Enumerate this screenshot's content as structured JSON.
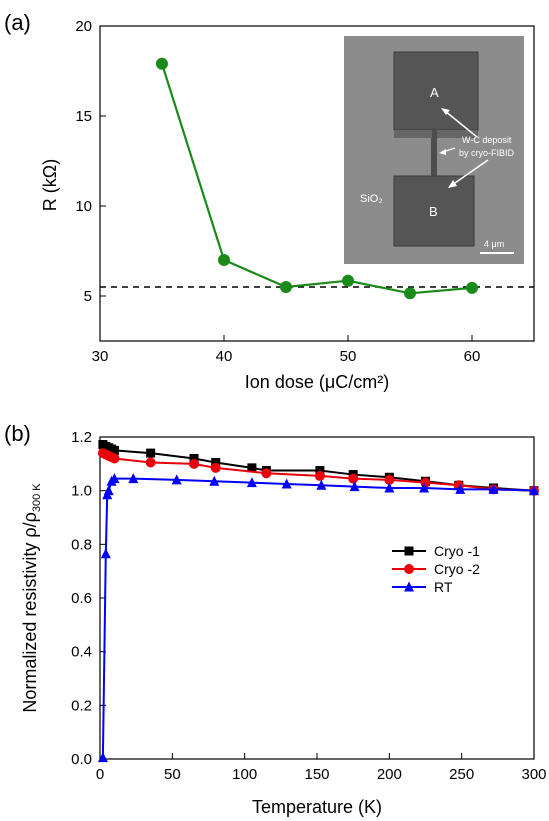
{
  "chart_data": [
    {
      "panel_label": "(a)",
      "type": "line",
      "xlabel": "Ion dose (μC/cm²)",
      "ylabel": "R (kΩ)",
      "xlim": [
        30,
        65
      ],
      "ylim": [
        2.5,
        20
      ],
      "x_ticks": [
        30,
        40,
        50,
        60
      ],
      "y_ticks": [
        5,
        10,
        15,
        20
      ],
      "series": [
        {
          "color": "#1a8a1a",
          "x": [
            35,
            40,
            45,
            50,
            55,
            60
          ],
          "y": [
            17.9,
            7.0,
            5.5,
            5.85,
            5.15,
            5.45
          ]
        }
      ],
      "reference_line": {
        "y": 5.5,
        "style": "dashed",
        "color": "#000000"
      },
      "inset": {
        "labels": [
          "A",
          "B",
          "SiO₂",
          "W-C deposit",
          "by cryo-FIBID"
        ],
        "scale_bar": "4 μm"
      },
      "grid": false
    },
    {
      "panel_label": "(b)",
      "type": "line",
      "xlabel": "Temperature (K)",
      "ylabel": "Normalized resistivity ρ/ρ300 K",
      "xlim": [
        0,
        300
      ],
      "ylim": [
        0,
        1.2
      ],
      "x_ticks": [
        0,
        50,
        100,
        150,
        200,
        250,
        300
      ],
      "y_ticks": [
        0.0,
        0.2,
        0.4,
        0.6,
        0.8,
        1.0,
        1.2
      ],
      "legend_position": "center-right",
      "grid": false,
      "series": [
        {
          "name": "Cryo -1",
          "color": "#000000",
          "marker": "square",
          "x": [
            2,
            4,
            6,
            8,
            10,
            35,
            65,
            80,
            105,
            115,
            152,
            175,
            200,
            225,
            248,
            272,
            300
          ],
          "y": [
            1.172,
            1.165,
            1.16,
            1.155,
            1.15,
            1.14,
            1.12,
            1.105,
            1.085,
            1.075,
            1.075,
            1.06,
            1.05,
            1.035,
            1.02,
            1.01,
            1.0
          ]
        },
        {
          "name": "Cryo -2",
          "color": "#e8000b",
          "marker": "circle",
          "x": [
            2,
            4,
            6,
            8,
            10,
            35,
            65,
            80,
            115,
            152,
            175,
            200,
            225,
            248,
            272,
            300
          ],
          "y": [
            1.14,
            1.135,
            1.13,
            1.125,
            1.12,
            1.105,
            1.1,
            1.085,
            1.065,
            1.055,
            1.045,
            1.04,
            1.03,
            1.02,
            1.005,
            1.0
          ]
        },
        {
          "name": "RT",
          "color": "#0000ff",
          "marker": "triangle",
          "x": [
            2,
            4,
            5,
            6,
            8,
            10,
            23,
            53,
            79,
            105,
            129,
            153,
            176,
            200,
            224,
            249,
            272,
            300
          ],
          "y": [
            0.005,
            0.765,
            0.985,
            1.0,
            1.035,
            1.045,
            1.045,
            1.04,
            1.035,
            1.03,
            1.025,
            1.02,
            1.015,
            1.01,
            1.01,
            1.005,
            1.005,
            1.0
          ]
        }
      ]
    }
  ]
}
